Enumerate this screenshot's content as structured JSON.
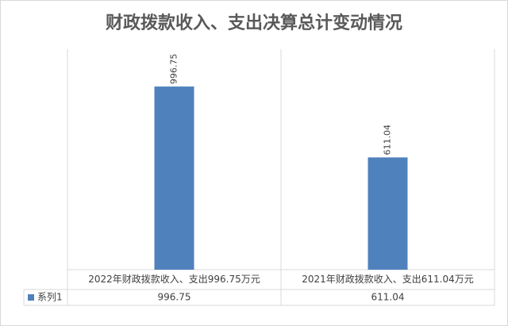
{
  "chart_data": {
    "type": "bar",
    "title": "财政拨款收入、支出决算总计变动情况",
    "categories": [
      "2022年财政拨款收入、支出996.75万元",
      "2021年财政拨款收入、支出611.04万元"
    ],
    "series": [
      {
        "name": "系列1",
        "color": "#4f81bd",
        "values": [
          996.75,
          611.04
        ]
      }
    ],
    "ylim": [
      0,
      1200
    ]
  }
}
